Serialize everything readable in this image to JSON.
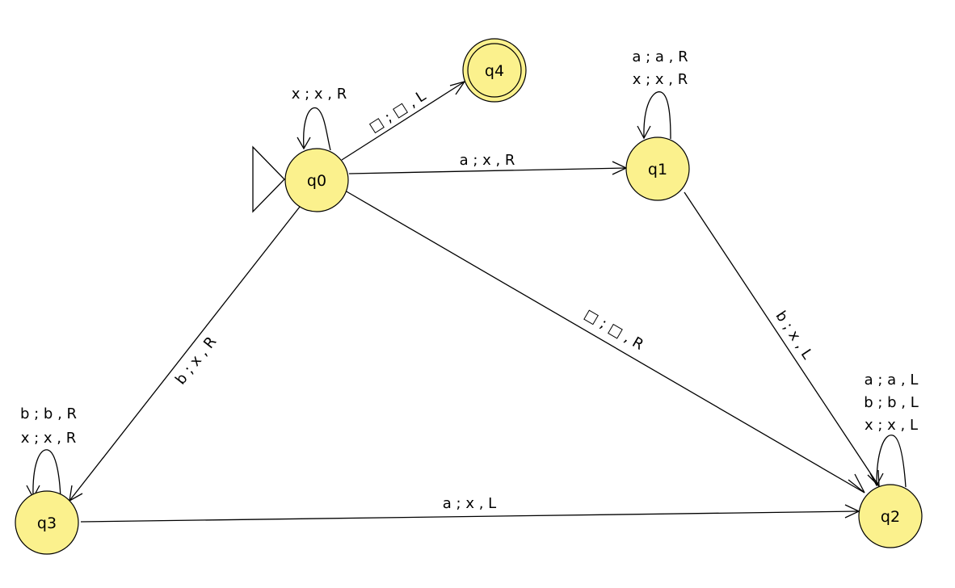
{
  "diagram": {
    "states": [
      {
        "id": "q0",
        "label": "q0",
        "start": true
      },
      {
        "id": "q1",
        "label": "q1"
      },
      {
        "id": "q2",
        "label": "q2"
      },
      {
        "id": "q3",
        "label": "q3"
      },
      {
        "id": "q4",
        "label": "q4",
        "accepting": true
      }
    ],
    "transitions": [
      {
        "from": "q0",
        "to": "q0",
        "labels": [
          "x ; x , R"
        ]
      },
      {
        "from": "q0",
        "to": "q4",
        "labels": [
          "□ ; □ , L"
        ]
      },
      {
        "from": "q0",
        "to": "q1",
        "labels": [
          "a ; x , R"
        ]
      },
      {
        "from": "q0",
        "to": "q2",
        "labels": [
          "□ ; □ , R"
        ]
      },
      {
        "from": "q0",
        "to": "q3",
        "labels": [
          "b ; x , R"
        ]
      },
      {
        "from": "q1",
        "to": "q1",
        "labels": [
          "a ; a , R",
          "x ; x , R"
        ]
      },
      {
        "from": "q1",
        "to": "q2",
        "labels": [
          "b ; x , L"
        ]
      },
      {
        "from": "q2",
        "to": "q2",
        "labels": [
          "a ; a , L",
          "b ; b , L",
          "x ; x , L"
        ]
      },
      {
        "from": "q3",
        "to": "q3",
        "labels": [
          "b ; b , R",
          "x ; x , R"
        ]
      },
      {
        "from": "q3",
        "to": "q2",
        "labels": [
          "a ; x , L"
        ]
      }
    ],
    "colors": {
      "state_fill": "#fbf18d",
      "stroke": "#000000"
    }
  }
}
